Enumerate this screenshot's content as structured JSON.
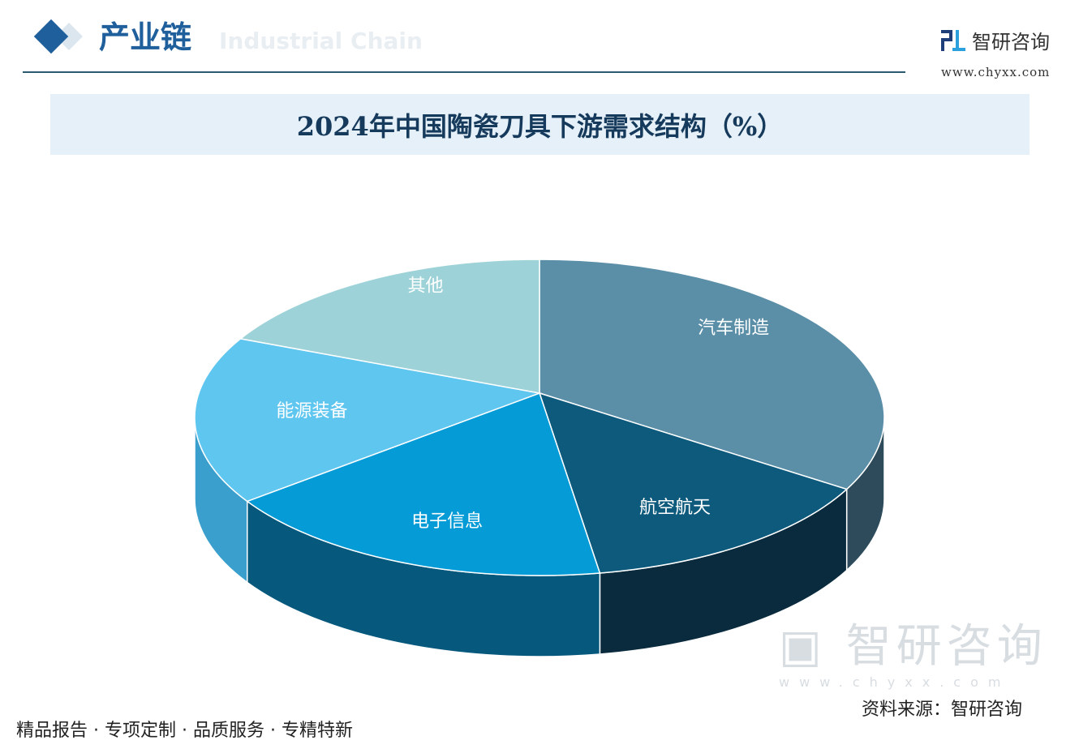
{
  "header": {
    "section_title": "产业链",
    "section_subtitle": "Industrial Chain",
    "brand_name": "智研咨询",
    "brand_url": "www.chyxx.com"
  },
  "chart_data": {
    "type": "pie",
    "title": "2024年中国陶瓷刀具下游需求结构（%）",
    "categories": [
      "汽车制造",
      "航空航天",
      "电子信息",
      "能源装备",
      "其他"
    ],
    "values": [
      32.5,
      14.7,
      18.9,
      17.2,
      16.7
    ],
    "colors": [
      "#5b8fa8",
      "#0d5a7d",
      "#049bd6",
      "#5fc6f0",
      "#9dd3d8"
    ],
    "side_colors": [
      "#2d4b5b",
      "#0a2b3e",
      "#06587d",
      "#3a9fcd",
      "#6fb0b6"
    ],
    "label_color": "#ffffff",
    "legend": "none",
    "data_labels_shown": false
  },
  "footer": {
    "slogan": "精品报告 · 专项定制 · 品质服务 · 专精特新",
    "source": "资料来源：智研咨询",
    "watermark": "智研咨询",
    "watermark_url": "www.chyxx.com"
  }
}
